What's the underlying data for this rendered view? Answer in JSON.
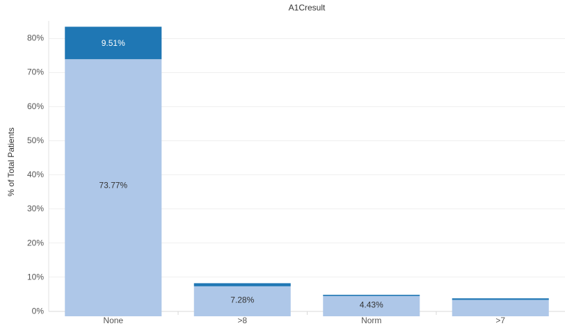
{
  "chart_data": {
    "type": "bar",
    "stacked": true,
    "title": "A1Cresult",
    "xlabel": "",
    "ylabel": "% of Total Patients",
    "categories": [
      "None",
      ">8",
      "Norm",
      ">7"
    ],
    "series": [
      {
        "values": [
          73.77,
          7.28,
          4.43,
          3.3
        ],
        "color": "#aec7e8"
      },
      {
        "values": [
          9.51,
          0.9,
          0.35,
          0.45
        ],
        "color": "#1f77b4"
      }
    ],
    "data_labels": [
      {
        "category": "None",
        "series": 1,
        "text": "9.51%",
        "color": "#ffffff"
      },
      {
        "category": "None",
        "series": 0,
        "text": "73.77%",
        "color": "#333333"
      },
      {
        "category": ">8",
        "series": 0,
        "text": "7.28%",
        "color": "#333333"
      },
      {
        "category": "Norm",
        "series": 0,
        "text": "4.43%",
        "color": "#333333"
      }
    ],
    "yticks": [
      0,
      10,
      20,
      30,
      40,
      50,
      60,
      70,
      80
    ],
    "ytick_labels": [
      "0%",
      "10%",
      "20%",
      "30%",
      "40%",
      "50%",
      "60%",
      "70%",
      "80%"
    ],
    "ylim": [
      -1.5,
      85
    ],
    "grid": true,
    "legend": "none"
  }
}
